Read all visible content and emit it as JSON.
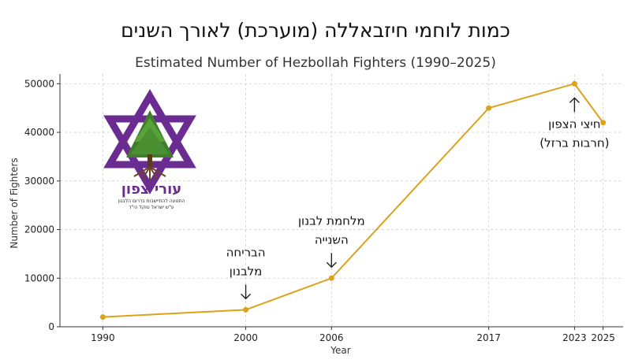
{
  "header": {
    "hebrew_title": "כמות לוחמי חיזבאללה (מוערכת) לאורך השנים"
  },
  "logo": {
    "name": "עורי צפון",
    "line1": "התנועה להתיישבות בדרום הלבנון",
    "line2": "ע\"ש ישראל טוקל הי\"ד"
  },
  "chart_data": {
    "type": "line",
    "title": "Estimated Number of Hezbollah Fighters (1990–2025)",
    "xlabel": "Year",
    "ylabel": "Number of Fighters",
    "x": [
      1990,
      2000,
      2006,
      2017,
      2023,
      2025
    ],
    "xticks": [
      "1990",
      "2000",
      "2006",
      "2017",
      "2023",
      "2025"
    ],
    "series": [
      {
        "values": [
          2000,
          3500,
          10000,
          45000,
          50000,
          42000
        ]
      }
    ],
    "ylim": [
      0,
      52000
    ],
    "yticks": [
      "0",
      "10000",
      "20000",
      "30000",
      "40000",
      "50000"
    ],
    "grid": true,
    "line_color": "#dba21b",
    "annotations": [
      {
        "lines": [
          "הבריחה",
          "מלבנון"
        ],
        "x": 2000,
        "arrow": "down"
      },
      {
        "lines": [
          "מלחמת לבנון",
          "השנייה"
        ],
        "x": 2006,
        "arrow": "down"
      },
      {
        "lines": [
          "חיצי הצפון",
          "(חרבות ברזל)"
        ],
        "x": 2023,
        "arrow": "up"
      }
    ]
  }
}
